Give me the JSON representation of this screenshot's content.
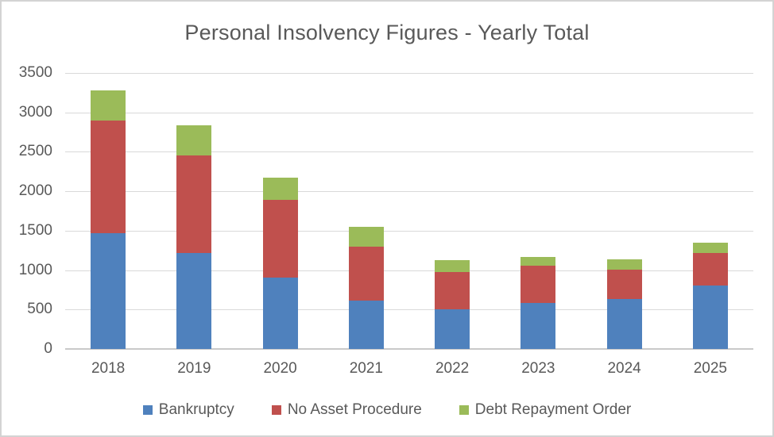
{
  "window": {
    "background": "#ffffff",
    "border_color": "#d3d3d3"
  },
  "chart_data": {
    "type": "bar",
    "stacked": true,
    "title": "Personal Insolvency Figures - Yearly Total",
    "xlabel": "",
    "ylabel": "",
    "categories": [
      "2018",
      "2019",
      "2020",
      "2021",
      "2022",
      "2023",
      "2024",
      "2025"
    ],
    "series": [
      {
        "name": "Bankruptcy",
        "color": "#4f81bd",
        "values": [
          1470,
          1220,
          910,
          615,
          505,
          580,
          630,
          800
        ]
      },
      {
        "name": "No Asset Procedure",
        "color": "#c0504d",
        "values": [
          1430,
          1230,
          980,
          685,
          470,
          475,
          380,
          420
        ]
      },
      {
        "name": "Debt Repayment Order",
        "color": "#9bbb59",
        "values": [
          375,
          390,
          285,
          250,
          155,
          115,
          130,
          130
        ]
      }
    ],
    "stack_totals": [
      3275,
      2840,
      2175,
      1550,
      1130,
      1170,
      1140,
      1350
    ],
    "ylim": [
      0,
      3500
    ],
    "ytick_step": 500,
    "ytick_labels": [
      "0",
      "500",
      "1000",
      "1500",
      "2000",
      "2500",
      "3000",
      "3500"
    ],
    "grid": true,
    "legend_position": "bottom",
    "text_color": "#595959",
    "gridline_color": "#d9d9d9",
    "axisline_color": "#c9c9c9"
  }
}
